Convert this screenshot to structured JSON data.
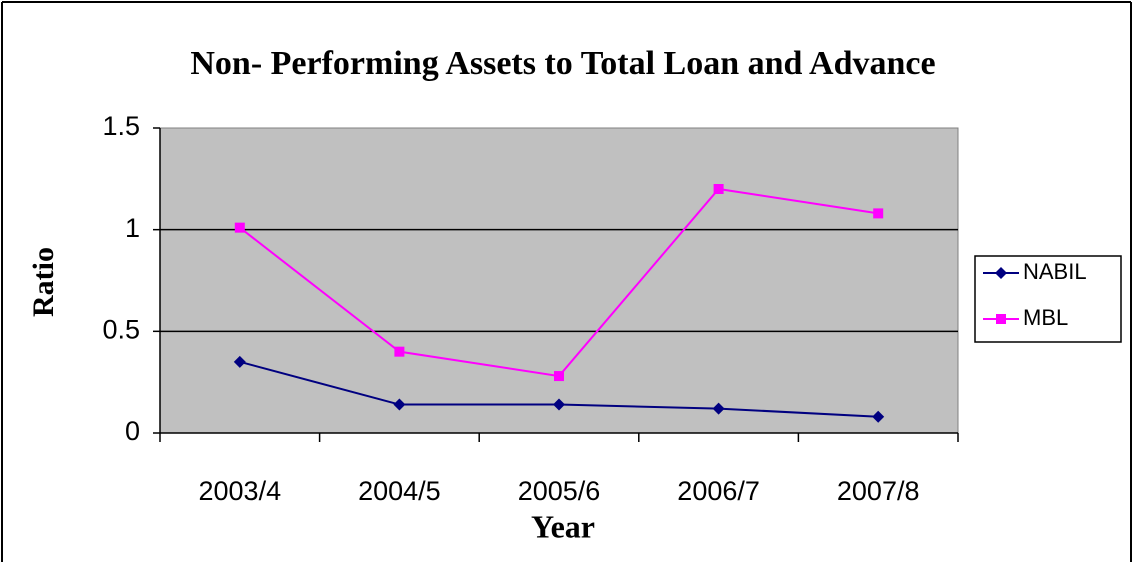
{
  "chart_data": {
    "type": "line",
    "title": "Non- Performing Assets to Total Loan and Advance",
    "x_label": "Year",
    "y_label": "Ratio",
    "categories": [
      "2003/4",
      "2004/5",
      "2005/6",
      "2006/7",
      "2007/8"
    ],
    "series": [
      {
        "name": "NABIL",
        "color": "#000080",
        "marker": "diamond",
        "values": [
          0.35,
          0.14,
          0.14,
          0.12,
          0.08
        ]
      },
      {
        "name": "MBL",
        "color": "#ff00ff",
        "marker": "square",
        "values": [
          1.01,
          0.4,
          0.28,
          1.2,
          1.08
        ]
      }
    ],
    "ylim": [
      0,
      1.5
    ],
    "yticks": [
      0,
      0.5,
      1,
      1.5
    ],
    "grid": true,
    "legend": "right",
    "plot_background": "#c0c0c0"
  }
}
